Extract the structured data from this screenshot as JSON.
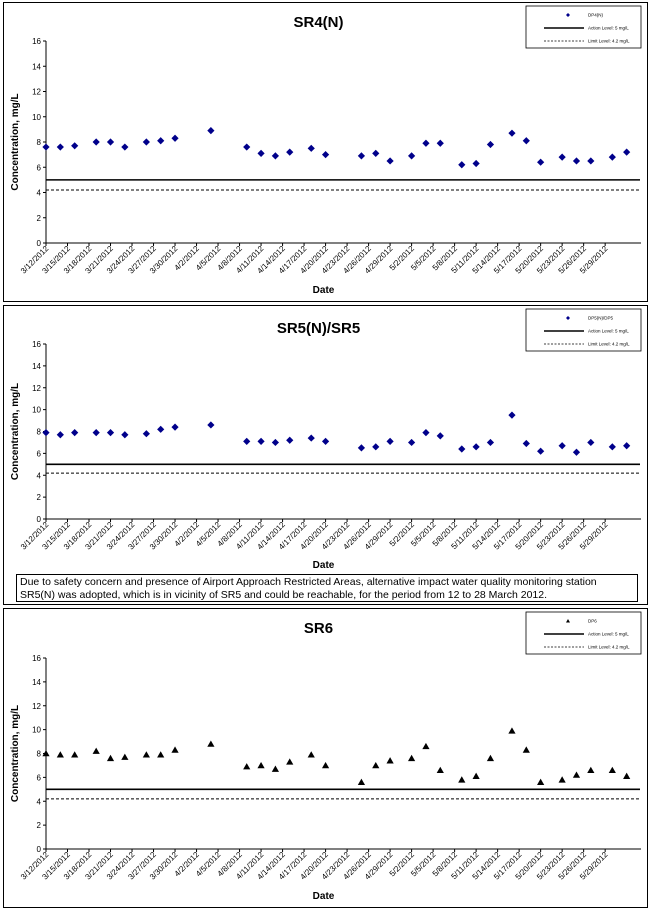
{
  "chart_data": [
    {
      "type": "scatter",
      "title": "SR4(N)",
      "xlabel": "Date",
      "ylabel": "Concentration, mg/L",
      "ylim": [
        0,
        16
      ],
      "yticks": [
        0,
        2,
        4,
        6,
        8,
        10,
        12,
        14,
        16
      ],
      "grid": false,
      "legend_position": "top-right",
      "categories": [
        "3/12/2012",
        "3/15/2012",
        "3/18/2012",
        "3/21/2012",
        "3/24/2012",
        "3/27/2012",
        "3/30/2012",
        "4/2/2012",
        "4/5/2012",
        "4/8/2012",
        "4/11/2012",
        "4/14/2012",
        "4/17/2012",
        "4/20/2012",
        "4/23/2012",
        "4/26/2012",
        "4/29/2012",
        "5/2/2012",
        "5/5/2012",
        "5/8/2012",
        "5/11/2012",
        "5/14/2012",
        "5/17/2012",
        "5/20/2012",
        "5/23/2012",
        "5/26/2012",
        "5/29/2012"
      ],
      "series": [
        {
          "name": "DP4(N)",
          "marker": "diamond",
          "color": "#00008b",
          "points": [
            {
              "x": "3/12/2012",
              "y": 7.6
            },
            {
              "x": "3/14/2012",
              "y": 7.6
            },
            {
              "x": "3/16/2012",
              "y": 7.7
            },
            {
              "x": "3/19/2012",
              "y": 8.0
            },
            {
              "x": "3/21/2012",
              "y": 8.0
            },
            {
              "x": "3/23/2012",
              "y": 7.6
            },
            {
              "x": "3/26/2012",
              "y": 8.0
            },
            {
              "x": "3/28/2012",
              "y": 8.1
            },
            {
              "x": "3/30/2012",
              "y": 8.3
            },
            {
              "x": "4/4/2012",
              "y": 8.9
            },
            {
              "x": "4/9/2012",
              "y": 7.6
            },
            {
              "x": "4/11/2012",
              "y": 7.1
            },
            {
              "x": "4/13/2012",
              "y": 6.9
            },
            {
              "x": "4/15/2012",
              "y": 7.2
            },
            {
              "x": "4/18/2012",
              "y": 7.5
            },
            {
              "x": "4/20/2012",
              "y": 7.0
            },
            {
              "x": "4/25/2012",
              "y": 6.9
            },
            {
              "x": "4/27/2012",
              "y": 7.1
            },
            {
              "x": "4/29/2012",
              "y": 6.5
            },
            {
              "x": "5/2/2012",
              "y": 6.9
            },
            {
              "x": "5/4/2012",
              "y": 7.9
            },
            {
              "x": "5/6/2012",
              "y": 7.9
            },
            {
              "x": "5/9/2012",
              "y": 6.2
            },
            {
              "x": "5/11/2012",
              "y": 6.3
            },
            {
              "x": "5/13/2012",
              "y": 7.8
            },
            {
              "x": "5/16/2012",
              "y": 8.7
            },
            {
              "x": "5/18/2012",
              "y": 8.1
            },
            {
              "x": "5/20/2012",
              "y": 6.4
            },
            {
              "x": "5/23/2012",
              "y": 6.8
            },
            {
              "x": "5/25/2012",
              "y": 6.5
            },
            {
              "x": "5/27/2012",
              "y": 6.5
            },
            {
              "x": "5/30/2012",
              "y": 6.8
            },
            {
              "x": "6/1/2012",
              "y": 7.2
            }
          ]
        },
        {
          "name": "Action Level: 5 mg/L",
          "style": "solid",
          "value": 5
        },
        {
          "name": "Limit Level: 4.2 mg/L",
          "style": "dashed",
          "value": 4.2
        }
      ]
    },
    {
      "type": "scatter",
      "title": "SR5(N)/SR5",
      "xlabel": "Date",
      "ylabel": "Concentration, mg/L",
      "ylim": [
        0,
        16
      ],
      "yticks": [
        0,
        2,
        4,
        6,
        8,
        10,
        12,
        14,
        16
      ],
      "grid": false,
      "legend_position": "top-right",
      "note": "Due to safety concern and presence of Airport Approach Restricted Areas, alternative impact water quality monitoring station SR5(N) was adopted, which is in vicinity of SR5 and could be reachable, for the period from 12 to 28 March 2012.",
      "categories": [
        "3/12/2012",
        "3/15/2012",
        "3/18/2012",
        "3/21/2012",
        "3/24/2012",
        "3/27/2012",
        "3/30/2012",
        "4/2/2012",
        "4/5/2012",
        "4/8/2012",
        "4/11/2012",
        "4/14/2012",
        "4/17/2012",
        "4/20/2012",
        "4/23/2012",
        "4/26/2012",
        "4/29/2012",
        "5/2/2012",
        "5/5/2012",
        "5/8/2012",
        "5/11/2012",
        "5/14/2012",
        "5/17/2012",
        "5/20/2012",
        "5/23/2012",
        "5/26/2012",
        "5/29/2012"
      ],
      "series": [
        {
          "name": "DP5(N)/DP5",
          "marker": "diamond",
          "color": "#00008b",
          "points": [
            {
              "x": "3/12/2012",
              "y": 7.9
            },
            {
              "x": "3/14/2012",
              "y": 7.7
            },
            {
              "x": "3/16/2012",
              "y": 7.9
            },
            {
              "x": "3/19/2012",
              "y": 7.9
            },
            {
              "x": "3/21/2012",
              "y": 7.9
            },
            {
              "x": "3/23/2012",
              "y": 7.7
            },
            {
              "x": "3/26/2012",
              "y": 7.8
            },
            {
              "x": "3/28/2012",
              "y": 8.2
            },
            {
              "x": "3/30/2012",
              "y": 8.4
            },
            {
              "x": "4/4/2012",
              "y": 8.6
            },
            {
              "x": "4/9/2012",
              "y": 7.1
            },
            {
              "x": "4/11/2012",
              "y": 7.1
            },
            {
              "x": "4/13/2012",
              "y": 7.0
            },
            {
              "x": "4/15/2012",
              "y": 7.2
            },
            {
              "x": "4/18/2012",
              "y": 7.4
            },
            {
              "x": "4/20/2012",
              "y": 7.1
            },
            {
              "x": "4/25/2012",
              "y": 6.5
            },
            {
              "x": "4/27/2012",
              "y": 6.6
            },
            {
              "x": "4/29/2012",
              "y": 7.1
            },
            {
              "x": "5/2/2012",
              "y": 7.0
            },
            {
              "x": "5/4/2012",
              "y": 7.9
            },
            {
              "x": "5/6/2012",
              "y": 7.6
            },
            {
              "x": "5/9/2012",
              "y": 6.4
            },
            {
              "x": "5/11/2012",
              "y": 6.6
            },
            {
              "x": "5/13/2012",
              "y": 7.0
            },
            {
              "x": "5/16/2012",
              "y": 9.5
            },
            {
              "x": "5/18/2012",
              "y": 6.9
            },
            {
              "x": "5/20/2012",
              "y": 6.2
            },
            {
              "x": "5/23/2012",
              "y": 6.7
            },
            {
              "x": "5/25/2012",
              "y": 6.1
            },
            {
              "x": "5/27/2012",
              "y": 7.0
            },
            {
              "x": "5/30/2012",
              "y": 6.6
            },
            {
              "x": "6/1/2012",
              "y": 6.7
            }
          ]
        },
        {
          "name": "Action Level: 5 mg/L",
          "style": "solid",
          "value": 5
        },
        {
          "name": "Limit Level: 4.2 mg/L",
          "style": "dashed",
          "value": 4.2
        }
      ]
    },
    {
      "type": "scatter",
      "title": "SR6",
      "xlabel": "Date",
      "ylabel": "Concentration, mg/L",
      "ylim": [
        0,
        16
      ],
      "yticks": [
        0,
        2,
        4,
        6,
        8,
        10,
        12,
        14,
        16
      ],
      "grid": false,
      "legend_position": "top-right",
      "categories": [
        "3/12/2012",
        "3/15/2012",
        "3/18/2012",
        "3/21/2012",
        "3/24/2012",
        "3/27/2012",
        "3/30/2012",
        "4/2/2012",
        "4/5/2012",
        "4/8/2012",
        "4/11/2012",
        "4/14/2012",
        "4/17/2012",
        "4/20/2012",
        "4/23/2012",
        "4/26/2012",
        "4/29/2012",
        "5/2/2012",
        "5/5/2012",
        "5/8/2012",
        "5/11/2012",
        "5/14/2012",
        "5/17/2012",
        "5/20/2012",
        "5/23/2012",
        "5/26/2012",
        "5/29/2012"
      ],
      "series": [
        {
          "name": "DP6",
          "marker": "triangle",
          "color": "#000000",
          "points": [
            {
              "x": "3/12/2012",
              "y": 8.0
            },
            {
              "x": "3/14/2012",
              "y": 7.9
            },
            {
              "x": "3/16/2012",
              "y": 7.9
            },
            {
              "x": "3/19/2012",
              "y": 8.2
            },
            {
              "x": "3/21/2012",
              "y": 7.6
            },
            {
              "x": "3/23/2012",
              "y": 7.7
            },
            {
              "x": "3/26/2012",
              "y": 7.9
            },
            {
              "x": "3/28/2012",
              "y": 7.9
            },
            {
              "x": "3/30/2012",
              "y": 8.3
            },
            {
              "x": "4/4/2012",
              "y": 8.8
            },
            {
              "x": "4/9/2012",
              "y": 6.9
            },
            {
              "x": "4/11/2012",
              "y": 7.0
            },
            {
              "x": "4/13/2012",
              "y": 6.7
            },
            {
              "x": "4/15/2012",
              "y": 7.3
            },
            {
              "x": "4/18/2012",
              "y": 7.9
            },
            {
              "x": "4/20/2012",
              "y": 7.0
            },
            {
              "x": "4/25/2012",
              "y": 5.6
            },
            {
              "x": "4/27/2012",
              "y": 7.0
            },
            {
              "x": "4/29/2012",
              "y": 7.4
            },
            {
              "x": "5/2/2012",
              "y": 7.6
            },
            {
              "x": "5/4/2012",
              "y": 8.6
            },
            {
              "x": "5/6/2012",
              "y": 6.6
            },
            {
              "x": "5/9/2012",
              "y": 5.8
            },
            {
              "x": "5/11/2012",
              "y": 6.1
            },
            {
              "x": "5/13/2012",
              "y": 7.6
            },
            {
              "x": "5/16/2012",
              "y": 9.9
            },
            {
              "x": "5/18/2012",
              "y": 8.3
            },
            {
              "x": "5/20/2012",
              "y": 5.6
            },
            {
              "x": "5/23/2012",
              "y": 5.8
            },
            {
              "x": "5/25/2012",
              "y": 6.2
            },
            {
              "x": "5/27/2012",
              "y": 6.6
            },
            {
              "x": "5/30/2012",
              "y": 6.6
            },
            {
              "x": "6/1/2012",
              "y": 6.1
            }
          ]
        },
        {
          "name": "Action Level: 5 mg/L",
          "style": "solid",
          "value": 5
        },
        {
          "name": "Limit Level: 4.2 mg/L",
          "style": "dashed",
          "value": 4.2
        }
      ]
    }
  ]
}
